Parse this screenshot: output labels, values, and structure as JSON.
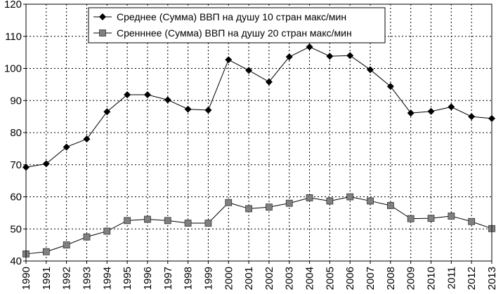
{
  "chart_data": {
    "type": "line",
    "title": "",
    "xlabel": "",
    "ylabel": "",
    "ylim": [
      40,
      120
    ],
    "yticks": [
      "40",
      "50",
      "60",
      "70",
      "80",
      "90",
      "100",
      "110",
      "120"
    ],
    "categories": [
      "1990",
      "1991",
      "1992",
      "1993",
      "1994",
      "1995",
      "1996",
      "1997",
      "1998",
      "1999",
      "2000",
      "2001",
      "2002",
      "2003",
      "2004",
      "2005",
      "2006",
      "2007",
      "2008",
      "2009",
      "2010",
      "2011",
      "2012",
      "2013"
    ],
    "grid": true,
    "legend_position": "top-center",
    "series": [
      {
        "name": "Среднее (Сумма) ВВП на душу 10 стран макс/мин",
        "marker": "diamond",
        "color": "#000000",
        "values": [
          69.2,
          70.3,
          75.5,
          78.0,
          86.5,
          91.8,
          91.8,
          90.2,
          87.3,
          87.0,
          102.7,
          99.4,
          95.8,
          103.6,
          106.7,
          103.8,
          104.0,
          99.6,
          94.4,
          86.1,
          86.6,
          88.0,
          85.0,
          84.4
        ]
      },
      {
        "name": "Сренннее (Сумма) ВВП на душу 20 стран макс/мин",
        "marker": "square",
        "color": "#808080",
        "values": [
          42.2,
          42.9,
          45.0,
          47.5,
          49.3,
          52.6,
          53.0,
          52.6,
          51.8,
          51.8,
          58.2,
          56.3,
          56.8,
          58.0,
          59.7,
          58.7,
          60.0,
          58.7,
          57.3,
          53.2,
          53.3,
          54.0,
          52.3,
          50.1
        ]
      }
    ]
  }
}
